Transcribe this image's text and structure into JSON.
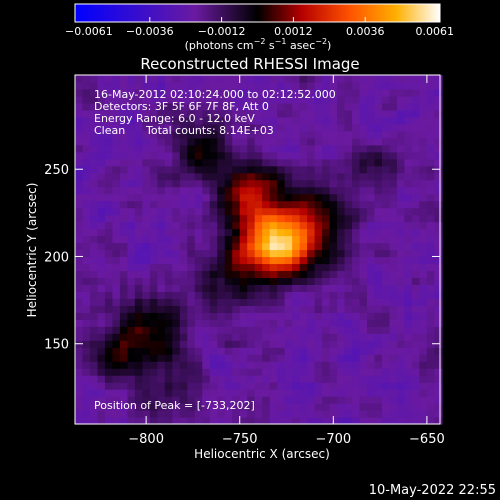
{
  "chart_data": {
    "type": "heatmap",
    "title": "Reconstructed RHESSI Image",
    "xlabel": "Heliocentric X (arcsec)",
    "ylabel": "Heliocentric Y (arcsec)",
    "xlim": [
      -838,
      -643
    ],
    "ylim": [
      104,
      304
    ],
    "xticks": [
      -800,
      -750,
      -700,
      -650
    ],
    "xtick_labels": [
      "−800",
      "−750",
      "−700",
      "−650"
    ],
    "yticks": [
      150,
      200,
      250
    ],
    "ytick_labels": [
      "150",
      "200",
      "250"
    ],
    "colorbar": {
      "range": [
        -0.0061,
        0.0061
      ],
      "ticks": [
        -0.0061,
        -0.0036,
        -0.0012,
        0.0012,
        0.0036,
        0.0061
      ],
      "tick_labels": [
        "−0.0061",
        "−0.0036",
        "−0.0012",
        "0.0012",
        "0.0036",
        "0.0061"
      ],
      "unit_parts": [
        "(photons cm",
        "−2",
        " s",
        "−1",
        " asec",
        "−2",
        ")"
      ],
      "colors": [
        "#0000ff",
        "#6a1aa0",
        "#000000",
        "#b40000",
        "#ff5000",
        "#ffb000",
        "#ffffff"
      ]
    },
    "sources": [
      {
        "x": -733,
        "y": 205,
        "amplitude": 0.0061,
        "width": 14
      },
      {
        "x": -748,
        "y": 235,
        "amplitude": 0.0033,
        "width": 13
      },
      {
        "x": -715,
        "y": 218,
        "amplitude": 0.0022,
        "width": 16
      },
      {
        "x": -775,
        "y": 262,
        "amplitude": 0.0018,
        "width": 12
      },
      {
        "x": -800,
        "y": 158,
        "amplitude": 0.0024,
        "width": 14
      },
      {
        "x": -820,
        "y": 142,
        "amplitude": 0.0016,
        "width": 11
      },
      {
        "x": -785,
        "y": 120,
        "amplitude": 0.0013,
        "width": 13
      },
      {
        "x": -680,
        "y": 248,
        "amplitude": 0.0014,
        "width": 12
      },
      {
        "x": -760,
        "y": 185,
        "amplitude": 0.0015,
        "width": 14
      }
    ],
    "peak": [
      -733,
      202
    ]
  },
  "annotations": {
    "time_range": "16-May-2012 02:10:24.000 to 02:12:52.000",
    "detectors": "Detectors: 3F 5F 6F 7F 8F, Att 0",
    "energy": "Energy Range: 6.0 - 12.0 keV",
    "method": "Clean",
    "counts": "Total counts: 8.14E+03",
    "peak_label": "Position of Peak = [-733,202]"
  },
  "footer_date": "10-May-2022 22:55"
}
